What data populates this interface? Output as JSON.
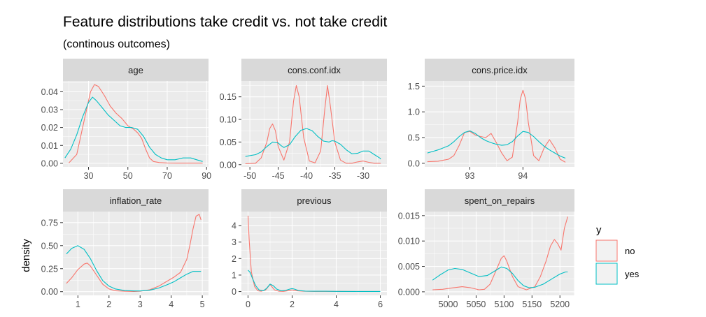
{
  "title": "Feature distributions take credit vs. not take credit",
  "subtitle": "(continous outcomes)",
  "ylabel": "density",
  "legend": {
    "title": "y",
    "items": [
      {
        "label": "no",
        "color": "#F8766D"
      },
      {
        "label": "yes",
        "color": "#00BFC4"
      }
    ]
  },
  "chart_data": [
    {
      "type": "line",
      "title": "age",
      "xlim": [
        17,
        91
      ],
      "ylim": [
        -0.002,
        0.046
      ],
      "xticks": [
        {
          "v": 30,
          "label": "30"
        },
        {
          "v": 50,
          "label": "50"
        },
        {
          "v": 70,
          "label": "70"
        },
        {
          "v": 90,
          "label": "90"
        }
      ],
      "yticks": [
        {
          "v": 0,
          "label": "0.00"
        },
        {
          "v": 0.01,
          "label": "0.01"
        },
        {
          "v": 0.02,
          "label": "0.02"
        },
        {
          "v": 0.03,
          "label": "0.03"
        },
        {
          "v": 0.04,
          "label": "0.04"
        }
      ],
      "series": [
        {
          "name": "no",
          "color": "#F8766D",
          "x": [
            20,
            24,
            28,
            31,
            33,
            35,
            38,
            41,
            44,
            47,
            50,
            53,
            55,
            57,
            59,
            61,
            63,
            66,
            70,
            75,
            80,
            85,
            88
          ],
          "y": [
            0.0002,
            0.005,
            0.025,
            0.04,
            0.044,
            0.043,
            0.038,
            0.032,
            0.028,
            0.025,
            0.021,
            0.019,
            0.017,
            0.014,
            0.008,
            0.003,
            0.001,
            0.0004,
            0.0002,
            0.0001,
            0.0001,
            0.0001,
            0.0001
          ]
        },
        {
          "name": "yes",
          "color": "#00BFC4",
          "x": [
            18,
            21,
            24,
            27,
            30,
            32,
            34,
            37,
            40,
            43,
            46,
            49,
            52,
            55,
            58,
            61,
            64,
            67,
            70,
            74,
            78,
            82,
            85,
            88
          ],
          "y": [
            0.003,
            0.008,
            0.016,
            0.026,
            0.034,
            0.037,
            0.035,
            0.031,
            0.027,
            0.024,
            0.021,
            0.02,
            0.02,
            0.019,
            0.015,
            0.009,
            0.005,
            0.003,
            0.002,
            0.002,
            0.003,
            0.003,
            0.002,
            0.001
          ]
        }
      ]
    },
    {
      "type": "line",
      "title": "cons.conf.idx",
      "xlim": [
        -51.5,
        -25.8
      ],
      "ylim": [
        -0.005,
        0.185
      ],
      "xticks": [
        {
          "v": -50,
          "label": "-50"
        },
        {
          "v": -45,
          "label": "-45"
        },
        {
          "v": -40,
          "label": "-40"
        },
        {
          "v": -35,
          "label": "-35"
        },
        {
          "v": -30,
          "label": "-30"
        }
      ],
      "yticks": [
        {
          "v": 0,
          "label": "0.00"
        },
        {
          "v": 0.05,
          "label": "0.05"
        },
        {
          "v": 0.1,
          "label": "0.10"
        },
        {
          "v": 0.15,
          "label": "0.15"
        }
      ],
      "series": [
        {
          "name": "no",
          "color": "#F8766D",
          "x": [
            -50.8,
            -49,
            -48,
            -47,
            -46.5,
            -46,
            -45.5,
            -45,
            -44,
            -43,
            -42.3,
            -41.8,
            -41.3,
            -40.5,
            -39.5,
            -38.5,
            -37.5,
            -36.8,
            -36.3,
            -35.8,
            -35,
            -34,
            -33,
            -32,
            -31,
            -30,
            -29,
            -28,
            -27,
            -26.9
          ],
          "y": [
            0.002,
            0.003,
            0.015,
            0.05,
            0.08,
            0.09,
            0.075,
            0.04,
            0.01,
            0.05,
            0.14,
            0.175,
            0.15,
            0.06,
            0.008,
            0.004,
            0.03,
            0.12,
            0.175,
            0.13,
            0.05,
            0.01,
            0.003,
            0.003,
            0.006,
            0.008,
            0.005,
            0.003,
            0.003,
            0.003
          ]
        },
        {
          "name": "yes",
          "color": "#00BFC4",
          "x": [
            -50.8,
            -49,
            -48,
            -47,
            -46,
            -45,
            -44.5,
            -44,
            -43,
            -42,
            -41,
            -40,
            -39,
            -38,
            -37,
            -36,
            -35.5,
            -35,
            -34,
            -33,
            -32,
            -31,
            -30,
            -29,
            -28,
            -27,
            -26.9
          ],
          "y": [
            0.018,
            0.022,
            0.028,
            0.04,
            0.05,
            0.048,
            0.042,
            0.038,
            0.044,
            0.062,
            0.076,
            0.08,
            0.075,
            0.062,
            0.052,
            0.05,
            0.053,
            0.052,
            0.045,
            0.033,
            0.024,
            0.025,
            0.03,
            0.03,
            0.022,
            0.014,
            0.012
          ]
        }
      ]
    },
    {
      "type": "line",
      "title": "cons.price.idx",
      "xlim": [
        92.15,
        94.97
      ],
      "ylim": [
        -0.07,
        1.6
      ],
      "xticks": [
        {
          "v": 93,
          "label": "93"
        },
        {
          "v": 94,
          "label": "94"
        }
      ],
      "yticks": [
        {
          "v": 0,
          "label": "0.0"
        },
        {
          "v": 0.5,
          "label": "0.5"
        },
        {
          "v": 1.0,
          "label": "1.0"
        },
        {
          "v": 1.5,
          "label": "1.5"
        }
      ],
      "series": [
        {
          "name": "no",
          "color": "#F8766D",
          "x": [
            92.2,
            92.4,
            92.6,
            92.7,
            92.8,
            92.9,
            93.0,
            93.1,
            93.2,
            93.3,
            93.4,
            93.5,
            93.6,
            93.7,
            93.8,
            93.9,
            93.95,
            94.0,
            94.05,
            94.1,
            94.2,
            94.3,
            94.4,
            94.5,
            94.6,
            94.7,
            94.8
          ],
          "y": [
            0.03,
            0.04,
            0.08,
            0.15,
            0.35,
            0.6,
            0.62,
            0.55,
            0.52,
            0.5,
            0.58,
            0.4,
            0.2,
            0.05,
            0.12,
            0.8,
            1.25,
            1.42,
            1.25,
            0.8,
            0.15,
            0.05,
            0.3,
            0.46,
            0.3,
            0.08,
            0.02
          ]
        },
        {
          "name": "yes",
          "color": "#00BFC4",
          "x": [
            92.2,
            92.4,
            92.6,
            92.7,
            92.8,
            92.9,
            93.0,
            93.1,
            93.2,
            93.3,
            93.4,
            93.5,
            93.6,
            93.7,
            93.8,
            93.9,
            94.0,
            94.1,
            94.2,
            94.3,
            94.4,
            94.5,
            94.6,
            94.7,
            94.8
          ],
          "y": [
            0.2,
            0.26,
            0.34,
            0.42,
            0.52,
            0.6,
            0.63,
            0.58,
            0.5,
            0.44,
            0.4,
            0.37,
            0.35,
            0.36,
            0.42,
            0.53,
            0.62,
            0.6,
            0.52,
            0.42,
            0.33,
            0.26,
            0.2,
            0.14,
            0.1
          ]
        }
      ]
    },
    {
      "type": "line",
      "title": "inflation_rate",
      "xlim": [
        0.52,
        5.2
      ],
      "ylim": [
        -0.04,
        0.87
      ],
      "xticks": [
        {
          "v": 1,
          "label": "1"
        },
        {
          "v": 2,
          "label": "2"
        },
        {
          "v": 3,
          "label": "3"
        },
        {
          "v": 4,
          "label": "4"
        },
        {
          "v": 5,
          "label": "5"
        }
      ],
      "yticks": [
        {
          "v": 0,
          "label": "0.00"
        },
        {
          "v": 0.25,
          "label": "0.25"
        },
        {
          "v": 0.5,
          "label": "0.50"
        },
        {
          "v": 0.75,
          "label": "0.75"
        }
      ],
      "series": [
        {
          "name": "no",
          "color": "#F8766D",
          "x": [
            0.63,
            0.8,
            1.0,
            1.2,
            1.3,
            1.4,
            1.6,
            1.8,
            2.0,
            2.2,
            2.5,
            2.8,
            3.0,
            3.3,
            3.6,
            3.9,
            4.1,
            4.3,
            4.5,
            4.6,
            4.7,
            4.8,
            4.9,
            4.96
          ],
          "y": [
            0.09,
            0.15,
            0.24,
            0.3,
            0.31,
            0.28,
            0.18,
            0.08,
            0.03,
            0.01,
            0.005,
            0.002,
            0.005,
            0.02,
            0.06,
            0.12,
            0.16,
            0.21,
            0.35,
            0.5,
            0.68,
            0.82,
            0.84,
            0.78
          ]
        },
        {
          "name": "yes",
          "color": "#00BFC4",
          "x": [
            0.63,
            0.8,
            1.0,
            1.2,
            1.4,
            1.6,
            1.8,
            2.0,
            2.2,
            2.5,
            2.8,
            3.0,
            3.3,
            3.6,
            3.9,
            4.1,
            4.3,
            4.5,
            4.7,
            4.85,
            4.96
          ],
          "y": [
            0.41,
            0.47,
            0.5,
            0.46,
            0.36,
            0.23,
            0.12,
            0.06,
            0.03,
            0.012,
            0.008,
            0.008,
            0.015,
            0.04,
            0.08,
            0.11,
            0.15,
            0.19,
            0.22,
            0.22,
            0.22
          ]
        }
      ]
    },
    {
      "type": "line",
      "title": "previous",
      "xlim": [
        -0.3,
        6.3
      ],
      "ylim": [
        -0.23,
        4.85
      ],
      "xticks": [
        {
          "v": 0,
          "label": "0"
        },
        {
          "v": 2,
          "label": "2"
        },
        {
          "v": 4,
          "label": "4"
        },
        {
          "v": 6,
          "label": "6"
        }
      ],
      "yticks": [
        {
          "v": 0,
          "label": "0"
        },
        {
          "v": 1,
          "label": "1"
        },
        {
          "v": 2,
          "label": "2"
        },
        {
          "v": 3,
          "label": "3"
        },
        {
          "v": 4,
          "label": "4"
        }
      ],
      "series": [
        {
          "name": "no",
          "color": "#F8766D",
          "x": [
            0,
            0.05,
            0.15,
            0.3,
            0.45,
            0.6,
            0.8,
            0.95,
            1.0,
            1.05,
            1.2,
            1.4,
            1.6,
            1.8,
            2.0,
            2.2,
            2.5,
            3.0,
            3.5,
            4.0,
            5.0,
            6.0
          ],
          "y": [
            4.6,
            3.2,
            1.2,
            0.3,
            0.05,
            0.02,
            0.1,
            0.35,
            0.42,
            0.35,
            0.1,
            0.02,
            0.01,
            0.05,
            0.1,
            0.05,
            0.02,
            0.01,
            0.01,
            0.01,
            0.005,
            0.005
          ]
        },
        {
          "name": "yes",
          "color": "#00BFC4",
          "x": [
            0,
            0.1,
            0.2,
            0.35,
            0.5,
            0.7,
            0.85,
            1.0,
            1.15,
            1.3,
            1.5,
            1.7,
            1.9,
            2.0,
            2.1,
            2.3,
            2.6,
            3.0,
            3.5,
            4.0,
            5.0,
            6.0
          ],
          "y": [
            1.3,
            1.15,
            0.8,
            0.35,
            0.1,
            0.05,
            0.2,
            0.45,
            0.35,
            0.15,
            0.05,
            0.07,
            0.15,
            0.18,
            0.15,
            0.06,
            0.03,
            0.02,
            0.02,
            0.01,
            0.005,
            0.005
          ]
        }
      ]
    },
    {
      "type": "line",
      "title": "spent_on_repairs",
      "xlim": [
        4958,
        5226
      ],
      "ylim": [
        -0.0007,
        0.0158
      ],
      "xticks": [
        {
          "v": 5000,
          "label": "5000"
        },
        {
          "v": 5050,
          "label": "5050"
        },
        {
          "v": 5100,
          "label": "5100"
        },
        {
          "v": 5150,
          "label": "5150"
        },
        {
          "v": 5200,
          "label": "5200"
        }
      ],
      "yticks": [
        {
          "v": 0,
          "label": "0.000"
        },
        {
          "v": 0.005,
          "label": "0.005"
        },
        {
          "v": 0.01,
          "label": "0.010"
        },
        {
          "v": 0.015,
          "label": "0.015"
        }
      ],
      "series": [
        {
          "name": "no",
          "color": "#F8766D",
          "x": [
            4972,
            4990,
            5010,
            5025,
            5040,
            5055,
            5065,
            5075,
            5085,
            5095,
            5100,
            5105,
            5115,
            5125,
            5140,
            5155,
            5165,
            5175,
            5183,
            5190,
            5196,
            5202,
            5208,
            5214
          ],
          "y": [
            0.0004,
            0.0005,
            0.0008,
            0.001,
            0.0008,
            0.0004,
            0.0005,
            0.0015,
            0.004,
            0.0066,
            0.0071,
            0.006,
            0.003,
            0.001,
            0.0004,
            0.001,
            0.003,
            0.006,
            0.009,
            0.0103,
            0.0095,
            0.0082,
            0.0125,
            0.0148
          ]
        },
        {
          "name": "yes",
          "color": "#00BFC4",
          "x": [
            4972,
            4985,
            5000,
            5012,
            5025,
            5040,
            5055,
            5070,
            5085,
            5095,
            5105,
            5115,
            5125,
            5135,
            5145,
            5155,
            5170,
            5185,
            5200,
            5210,
            5214
          ],
          "y": [
            0.0023,
            0.0033,
            0.0043,
            0.0046,
            0.0044,
            0.0037,
            0.003,
            0.0032,
            0.0042,
            0.0049,
            0.0046,
            0.0036,
            0.0022,
            0.0012,
            0.0008,
            0.0009,
            0.0015,
            0.0025,
            0.0035,
            0.0039,
            0.0039
          ]
        }
      ]
    }
  ]
}
